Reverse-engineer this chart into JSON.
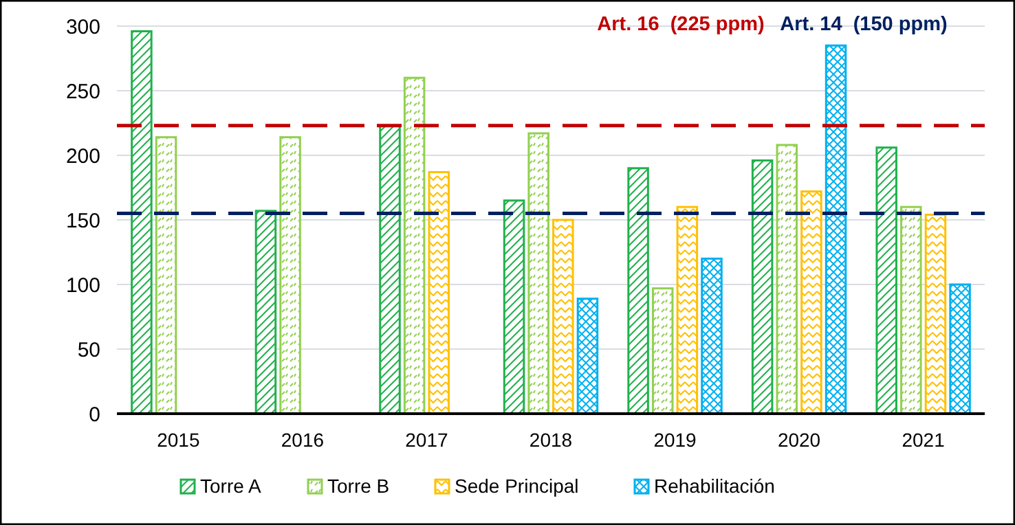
{
  "chart_data": {
    "type": "bar",
    "categories": [
      "2015",
      "2016",
      "2017",
      "2018",
      "2019",
      "2020",
      "2021"
    ],
    "series": [
      {
        "name": "Torre A",
        "color": "#20b14c",
        "values": [
          296,
          157,
          223,
          165,
          190,
          196,
          206
        ]
      },
      {
        "name": "Torre B",
        "color": "#92d050",
        "values": [
          214,
          214,
          260,
          217,
          97,
          208,
          160
        ]
      },
      {
        "name": "Sede Principal",
        "color": "#ffc000",
        "values": [
          null,
          null,
          187,
          150,
          160,
          172,
          154
        ]
      },
      {
        "name": "Rehabilitación",
        "color": "#00b0f0",
        "values": [
          null,
          null,
          null,
          89,
          120,
          285,
          100
        ]
      }
    ],
    "ylim": [
      0,
      300
    ],
    "yticks": [
      0,
      50,
      100,
      150,
      200,
      250,
      300
    ],
    "grid": "y",
    "legend": "bottom",
    "ref_lines": [
      {
        "axis": "y",
        "value": 223,
        "label": "Art. 16  (225 ppm)",
        "color": "#c00000",
        "line_style": "dashed"
      },
      {
        "axis": "y",
        "value": 155,
        "label": "Art. 14  (150 ppm)",
        "color": "#002060",
        "line_style": "dashed"
      }
    ]
  }
}
